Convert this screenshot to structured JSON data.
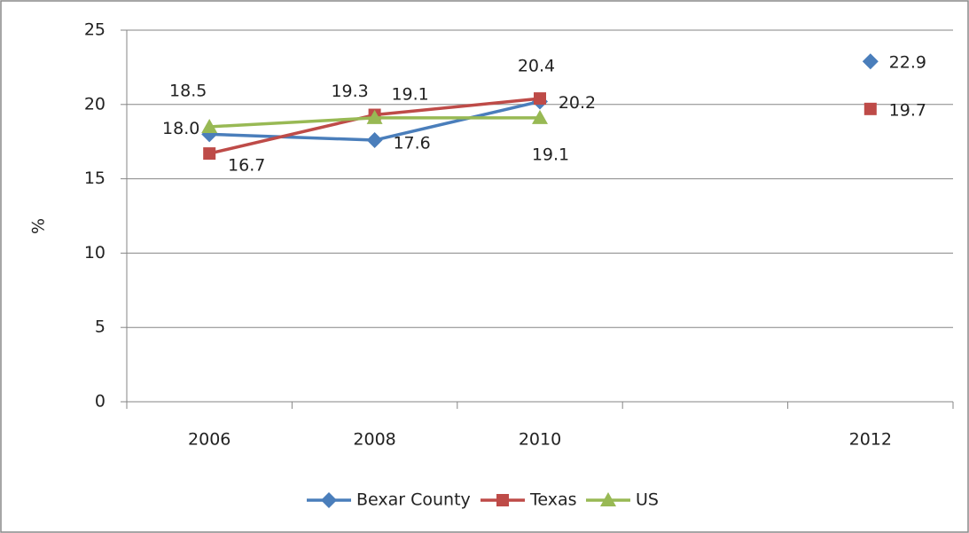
{
  "chart_data": {
    "type": "line",
    "y_label": "%",
    "categories": [
      "2006",
      "2008",
      "2010",
      null,
      "2012"
    ],
    "series": [
      {
        "name": "Bexar County",
        "color": "#4a7ebb",
        "marker": "diamond",
        "values": [
          18.0,
          17.6,
          20.2,
          null,
          22.9
        ],
        "value_labels": [
          "18.0",
          "17.6",
          "20.2",
          null,
          "22.9"
        ]
      },
      {
        "name": "Texas",
        "color": "#be4b48",
        "marker": "square",
        "values": [
          16.7,
          19.3,
          20.4,
          null,
          19.7
        ],
        "value_labels": [
          "16.7",
          "19.3",
          "20.4",
          null,
          "19.7"
        ]
      },
      {
        "name": "US",
        "color": "#98b954",
        "marker": "triangle",
        "values": [
          18.5,
          19.1,
          19.1,
          null,
          null
        ],
        "value_labels": [
          "18.5",
          "19.1",
          "19.1",
          null,
          null
        ]
      }
    ],
    "ylim": [
      0,
      25
    ],
    "yticks": [
      0,
      5,
      10,
      15,
      20,
      25
    ],
    "grid": true,
    "legend": "bottom"
  }
}
